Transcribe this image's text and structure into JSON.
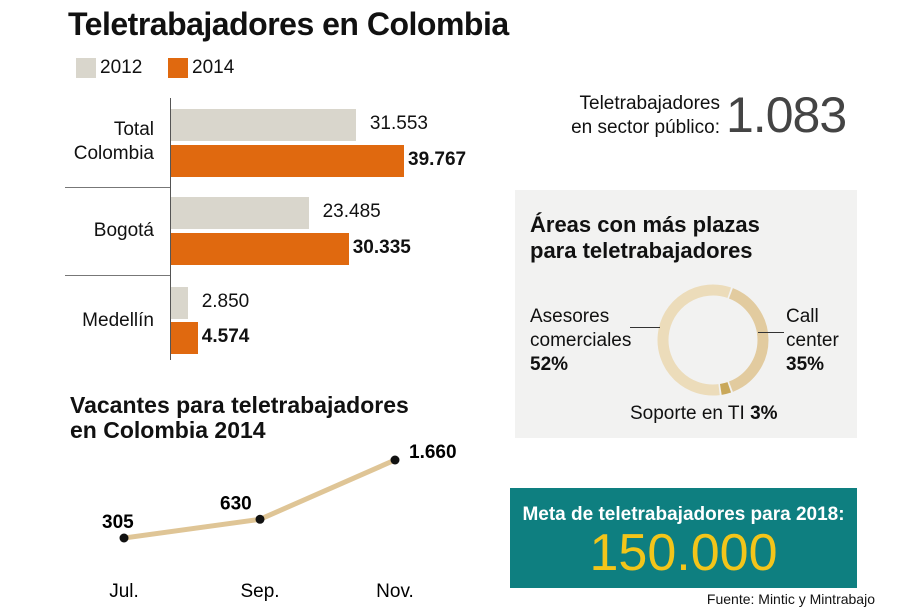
{
  "title": "Teletrabajadores en Colombia",
  "colors": {
    "y2012": "#d9d6cc",
    "y2014": "#e0690f",
    "line": "#dfc596",
    "teal": "#0e7f80",
    "goal": "#f3c51a"
  },
  "chart_data": [
    {
      "type": "bar",
      "orientation": "horizontal",
      "categories": [
        "Total Colombia",
        "Bogotá",
        "Medellín"
      ],
      "series": [
        {
          "name": "2012",
          "values": [
            31553,
            23485,
            2850
          ],
          "labels": [
            "31.553",
            "23.485",
            "2.850"
          ]
        },
        {
          "name": "2014",
          "values": [
            39767,
            30335,
            4574
          ],
          "labels": [
            "39.767",
            "30.335",
            "4.574"
          ]
        }
      ],
      "legend": "top-left"
    },
    {
      "type": "line",
      "title": "Vacantes para teletrabajadores en Colombia 2014",
      "categories": [
        "Jul.",
        "Sep.",
        "Nov."
      ],
      "values": [
        305,
        630,
        1660
      ],
      "labels": [
        "305",
        "630",
        "1.660"
      ]
    },
    {
      "type": "pie",
      "donut": true,
      "title": "Áreas con más plazas para teletrabajadores",
      "slices": [
        {
          "label": "Call center",
          "value": 35,
          "pct": "35%",
          "color": "#e2cb9f"
        },
        {
          "label": "Soporte en TI",
          "value": 3,
          "pct": "3%",
          "color": "#c9a85a"
        },
        {
          "label": "Asesores comerciales",
          "value": 52,
          "pct": "52%",
          "color": "#ecdcba"
        }
      ]
    }
  ],
  "public": {
    "label_line1": "Teletrabajadores",
    "label_line2": "en sector público:",
    "value": "1.083"
  },
  "goal": {
    "label": "Meta de teletrabajadores para 2018:",
    "value": "150.000"
  },
  "source": "Fuente: Mintic y Mintrabajo"
}
